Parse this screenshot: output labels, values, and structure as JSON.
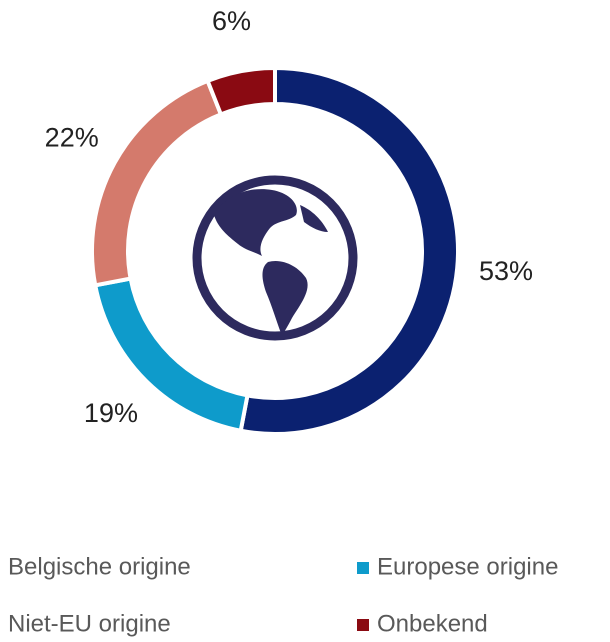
{
  "chart_data": {
    "type": "donut",
    "categories": [
      "Belgische origine",
      "Europese origine",
      "Niet-EU origine",
      "Onbekend"
    ],
    "values": [
      53,
      19,
      22,
      6
    ],
    "value_labels": [
      "53%",
      "19%",
      "22%",
      "6%"
    ],
    "colors": [
      "#0b2170",
      "#0e9bcb",
      "#d47a6c",
      "#8a0a12"
    ],
    "legend": "bottom"
  }
}
